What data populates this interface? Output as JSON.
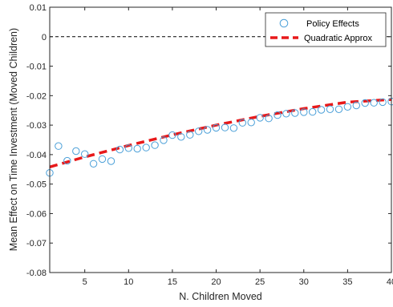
{
  "chart_data": {
    "type": "scatter",
    "xlabel": "N. Children Moved",
    "ylabel": "Mean Effect on Time Investment (Moved Children)",
    "xlim": [
      1,
      40
    ],
    "ylim": [
      -0.08,
      0.01
    ],
    "x_ticks": [
      5,
      10,
      15,
      20,
      25,
      30,
      35,
      40
    ],
    "y_ticks": [
      0.01,
      0,
      -0.01,
      -0.02,
      -0.03,
      -0.04,
      -0.05,
      -0.06,
      -0.07,
      -0.08
    ],
    "x_tick_labels": [
      "5",
      "10",
      "15",
      "20",
      "25",
      "30",
      "35",
      "40"
    ],
    "y_tick_labels": [
      "0.01",
      "0",
      "-0.01",
      "-0.02",
      "-0.03",
      "-0.04",
      "-0.05",
      "-0.06",
      "-0.07",
      "-0.08"
    ],
    "grid": false,
    "legend_position": "top-right",
    "reference_line": {
      "y": 0,
      "style": "dashed",
      "color": "#000000"
    },
    "series": [
      {
        "name": "Policy Effects",
        "kind": "markers",
        "marker": "circle-open",
        "color": "#4a9fd8",
        "x": [
          1,
          2,
          3,
          4,
          5,
          6,
          7,
          8,
          9,
          10,
          11,
          12,
          13,
          14,
          15,
          16,
          17,
          18,
          19,
          20,
          21,
          22,
          23,
          24,
          25,
          26,
          27,
          28,
          29,
          30,
          31,
          32,
          33,
          34,
          35,
          36,
          37,
          38,
          39,
          40
        ],
        "y": [
          -0.0462,
          -0.0371,
          -0.0421,
          -0.0388,
          -0.0398,
          -0.0431,
          -0.0415,
          -0.0422,
          -0.0383,
          -0.0378,
          -0.038,
          -0.0376,
          -0.0368,
          -0.0351,
          -0.0334,
          -0.034,
          -0.0333,
          -0.0321,
          -0.0316,
          -0.0309,
          -0.0308,
          -0.031,
          -0.0292,
          -0.0291,
          -0.0275,
          -0.0277,
          -0.0266,
          -0.0261,
          -0.0259,
          -0.0256,
          -0.0255,
          -0.0248,
          -0.0246,
          -0.0246,
          -0.0238,
          -0.0233,
          -0.0225,
          -0.0224,
          -0.0222,
          -0.022
        ]
      },
      {
        "name": "Quadratic Approx",
        "kind": "line",
        "style": "dashed",
        "color": "#e8191a",
        "x": [
          1,
          5,
          10,
          15,
          20,
          25,
          30,
          35,
          40
        ],
        "y": [
          -0.0442,
          -0.0408,
          -0.0369,
          -0.0333,
          -0.03,
          -0.027,
          -0.0244,
          -0.0222,
          -0.0213
        ]
      }
    ]
  }
}
